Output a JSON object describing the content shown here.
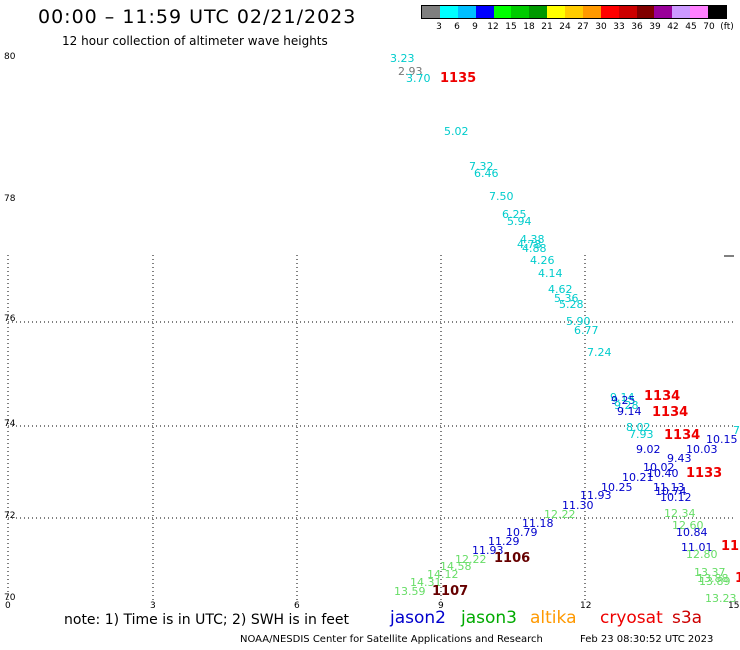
{
  "header": {
    "title": "00:00 – 11:59 UTC 02/21/2023",
    "subtitle": "12 hour collection of altimeter wave heights"
  },
  "colorbar": {
    "colors": [
      "#7f7f7f",
      "#00ffff",
      "#00bfff",
      "#0000ff",
      "#00ff00",
      "#00cc00",
      "#009900",
      "#ffff00",
      "#ffcc00",
      "#ff9900",
      "#ff0000",
      "#cc0000",
      "#800000",
      "#990099",
      "#cc99ff",
      "#ff80ff",
      "#000000"
    ],
    "labels": [
      "3",
      "6",
      "9",
      "12",
      "15",
      "18",
      "21",
      "24",
      "27",
      "30",
      "33",
      "36",
      "39",
      "42",
      "45",
      "70",
      "(ft)"
    ]
  },
  "axes": {
    "y_labels": [
      "80",
      "78",
      "76",
      "74",
      "72",
      "70"
    ],
    "x_labels": [
      "0",
      "3",
      "6",
      "9",
      "12",
      "15"
    ]
  },
  "tracks": {
    "cyan": [
      "3.23",
      "3.70",
      "5.02",
      "7.32",
      "6.46",
      "7.50",
      "6.25",
      "5.94",
      "4.78",
      "4.38",
      "4.88",
      "4.26",
      "4.14",
      "4.62",
      "5.36",
      "5.28",
      "5.90",
      "6.77",
      "7.24",
      "9.14",
      "9.28",
      "8.24",
      "9.14",
      "8.02",
      "7.93"
    ],
    "gray": [
      "2.93"
    ],
    "blue": [
      "9.25",
      "9.02",
      "9.43",
      "10.15",
      "10.03",
      "10.02",
      "10.40",
      "10.21",
      "10.25",
      "11.13",
      "10.12",
      "10.74",
      "11.93",
      "11.30",
      "11.18",
      "10.79",
      "11.29",
      "11.93",
      "10.84",
      "11.01"
    ],
    "green": [
      "12.22",
      "12.34",
      "12.60",
      "12.80",
      "12.22",
      "14.58",
      "14.12",
      "14.31",
      "13.59",
      "13.37",
      "13.88",
      "13.89",
      "13.23"
    ],
    "times_red": [
      "1135",
      "1134",
      "1134",
      "1134",
      "1133",
      "11",
      "1"
    ],
    "times_dark": [
      "1106",
      "1107"
    ],
    "extra": [
      "7"
    ]
  },
  "legend": {
    "note": "note: 1) Time is in UTC; 2) SWH is in feet",
    "satellites": [
      {
        "name": "jason2",
        "color": "#0000cc"
      },
      {
        "name": "jason3",
        "color": "#00aa00"
      },
      {
        "name": "altika",
        "color": "#ff9900"
      },
      {
        "name": "cryosat",
        "color": "#ee0000"
      },
      {
        "name": "s3a",
        "color": "#cc0000"
      }
    ]
  },
  "footer": {
    "credit": "NOAA/NESDIS Center for Satellite Applications and Research",
    "timestamp": "Feb 23 08:30:52 UTC 2023"
  },
  "colors": {
    "cyan": "#00cccc",
    "gray": "#777777",
    "blue": "#0000cc",
    "green": "#66dd66",
    "red": "#ee0000",
    "dark": "#660000"
  }
}
